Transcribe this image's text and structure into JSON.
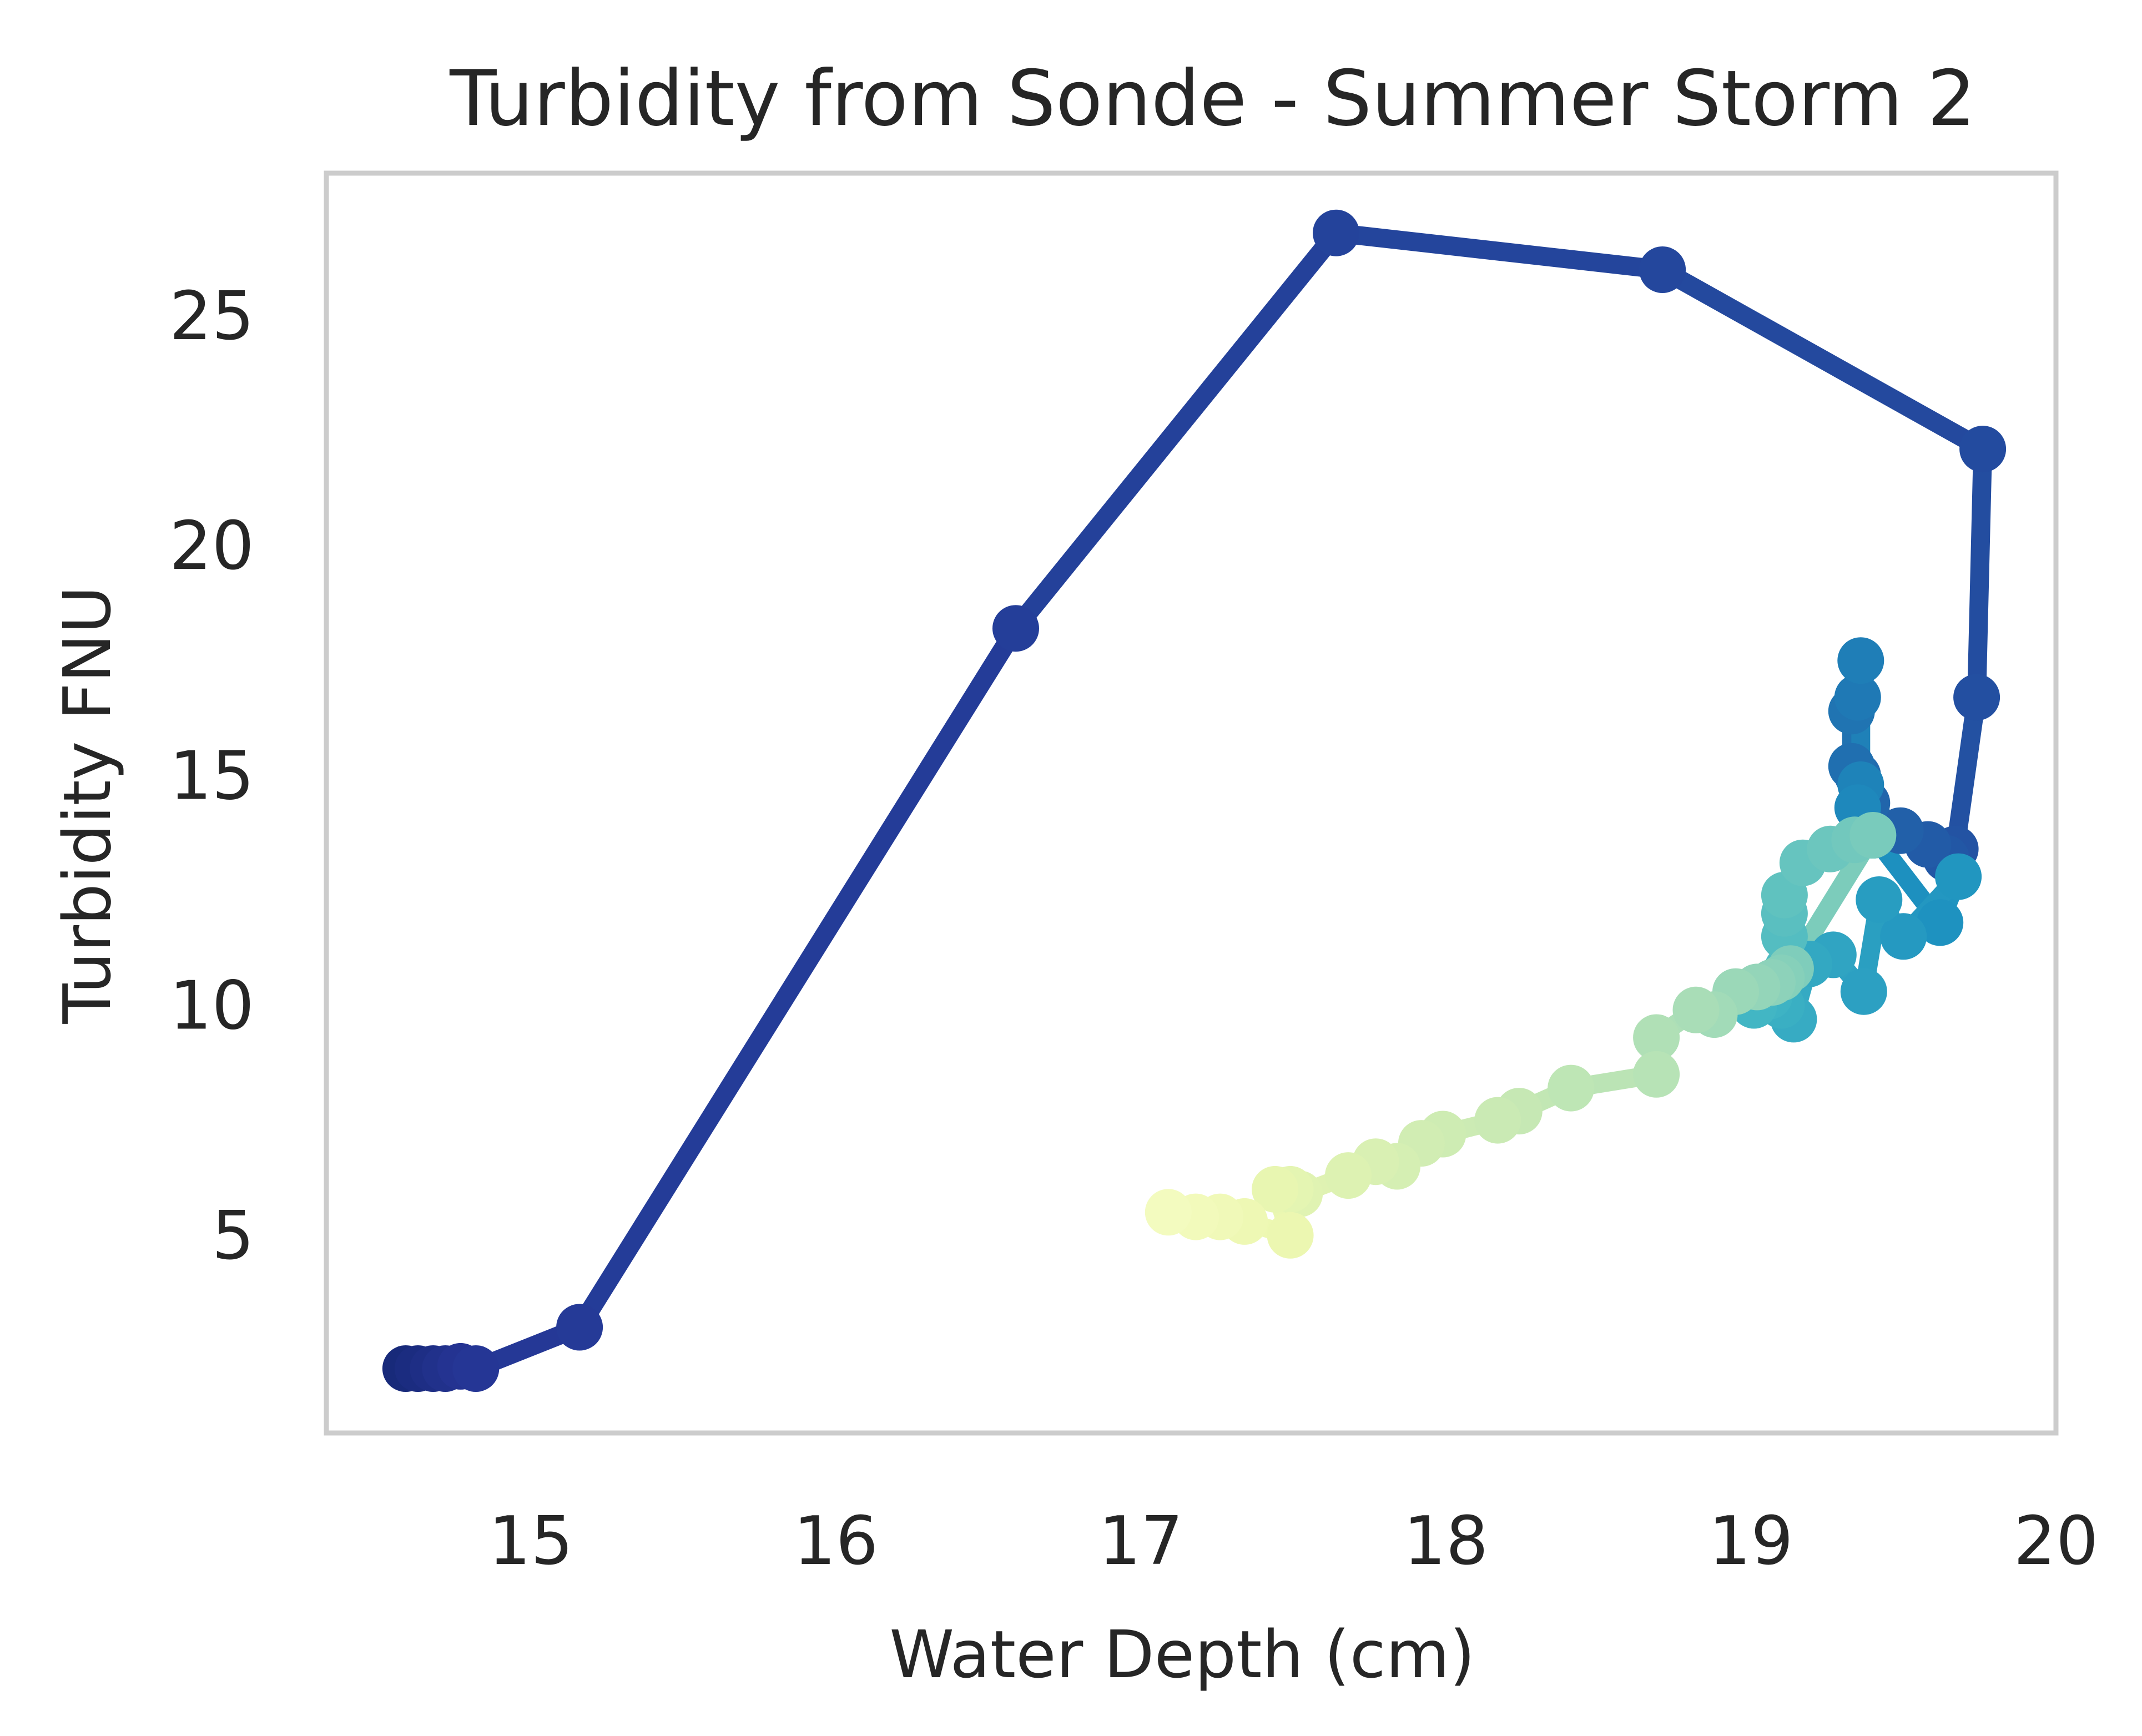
{
  "chart_data": {
    "type": "line",
    "title": "Turbidity from Sonde - Summer Storm 2",
    "xlabel": "Water Depth (cm)",
    "ylabel": "Turbidity FNU",
    "xlim": [
      14.33,
      20.0
    ],
    "ylim": [
      0.7,
      28.1
    ],
    "xticks": [
      15,
      16,
      17,
      18,
      19,
      20
    ],
    "yticks": [
      5,
      10,
      15,
      20,
      25
    ],
    "grid": false,
    "colormap": "YlGnBu",
    "series": [
      {
        "x": [
          14.59,
          14.63,
          14.68,
          14.72,
          14.77,
          14.82,
          15.16,
          16.59,
          17.64,
          18.71,
          19.76,
          19.74,
          19.67,
          19.64,
          19.58,
          19.49,
          19.38,
          19.35,
          19.33,
          19.33,
          19.35,
          19.36,
          19.36,
          19.35,
          19.4,
          19.62,
          19.68,
          19.5,
          19.42,
          19.37,
          19.27,
          19.19,
          19.14,
          19.1,
          19.06,
          19.01,
          19.03,
          19.12,
          19.11,
          19.11,
          19.11,
          19.17,
          19.26,
          19.34,
          19.4,
          19.13,
          19.1,
          19.07,
          19.02,
          18.95,
          18.88,
          18.82,
          18.69,
          18.69,
          18.41,
          18.24,
          18.17,
          17.99,
          17.92,
          17.84,
          17.77,
          17.68,
          17.52,
          17.49,
          17.44,
          17.49,
          17.34,
          17.26,
          17.18,
          17.09
        ],
        "y": [
          2.1,
          2.1,
          2.1,
          2.1,
          2.15,
          2.1,
          3.0,
          18.2,
          26.8,
          26.0,
          22.1,
          16.7,
          13.4,
          13.2,
          13.5,
          13.8,
          14.4,
          15.0,
          15.2,
          16.4,
          16.7,
          17.5,
          14.8,
          14.3,
          13.7,
          11.8,
          12.8,
          11.5,
          12.3,
          10.3,
          11.1,
          10.9,
          9.7,
          10.0,
          10.2,
          10.0,
          10.4,
          10.8,
          11.5,
          12.0,
          12.4,
          13.1,
          13.4,
          13.6,
          13.7,
          10.8,
          10.6,
          10.5,
          10.4,
          10.3,
          9.8,
          9.9,
          9.3,
          8.5,
          8.2,
          7.7,
          7.5,
          7.2,
          7.0,
          6.5,
          6.6,
          6.3,
          5.9,
          6.0,
          6.0,
          5.0,
          5.3,
          5.4,
          5.4,
          5.5
        ]
      }
    ]
  }
}
